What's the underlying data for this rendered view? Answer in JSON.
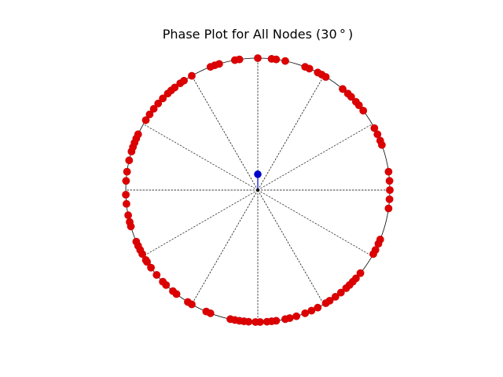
{
  "chart_data": {
    "type": "scatter",
    "title": "Phase Plot for All Nodes (30$^\\circ$)",
    "title_rendered": "Phase Plot for All Nodes (30 ° )",
    "coordinate_system": "polar (unit circle)",
    "spoke_interval_degrees": 30,
    "grid": true,
    "colors": {
      "circle": "#000000",
      "spokes": "#000000",
      "node_fill": "#dd0000",
      "node_edge": "#cc0000",
      "mean_vector": "#0000cc"
    },
    "series": [
      {
        "name": "nodes",
        "color": "#dd0000",
        "phase_degrees": [
          271,
          269,
          266,
          264,
          262,
          260,
          258,
          249,
          247,
          240,
          238,
          232,
          230,
          226,
          224,
          220,
          216,
          213,
          212,
          209,
          207,
          205,
          203,
          196,
          194,
          191,
          186,
          182,
          176,
          172,
          167,
          163,
          161,
          159,
          157,
          155,
          148,
          145,
          142,
          139,
          136,
          133,
          131,
          129,
          126,
          124,
          120,
          111,
          109,
          107,
          100,
          98,
          90,
          84,
          82,
          78,
          69,
          67,
          63,
          61,
          59,
          50,
          47,
          45,
          42,
          40,
          37,
          28,
          25,
          22,
          20,
          8,
          4,
          0,
          356,
          352,
          338,
          336,
          333,
          331,
          321,
          318,
          316,
          314,
          312,
          309,
          306,
          303,
          301,
          297,
          294,
          291,
          287,
          284,
          282,
          278,
          276,
          274
        ]
      }
    ],
    "mean_vector": {
      "angle_degrees": 90,
      "radius": 0.12,
      "color": "#0000cc"
    }
  }
}
